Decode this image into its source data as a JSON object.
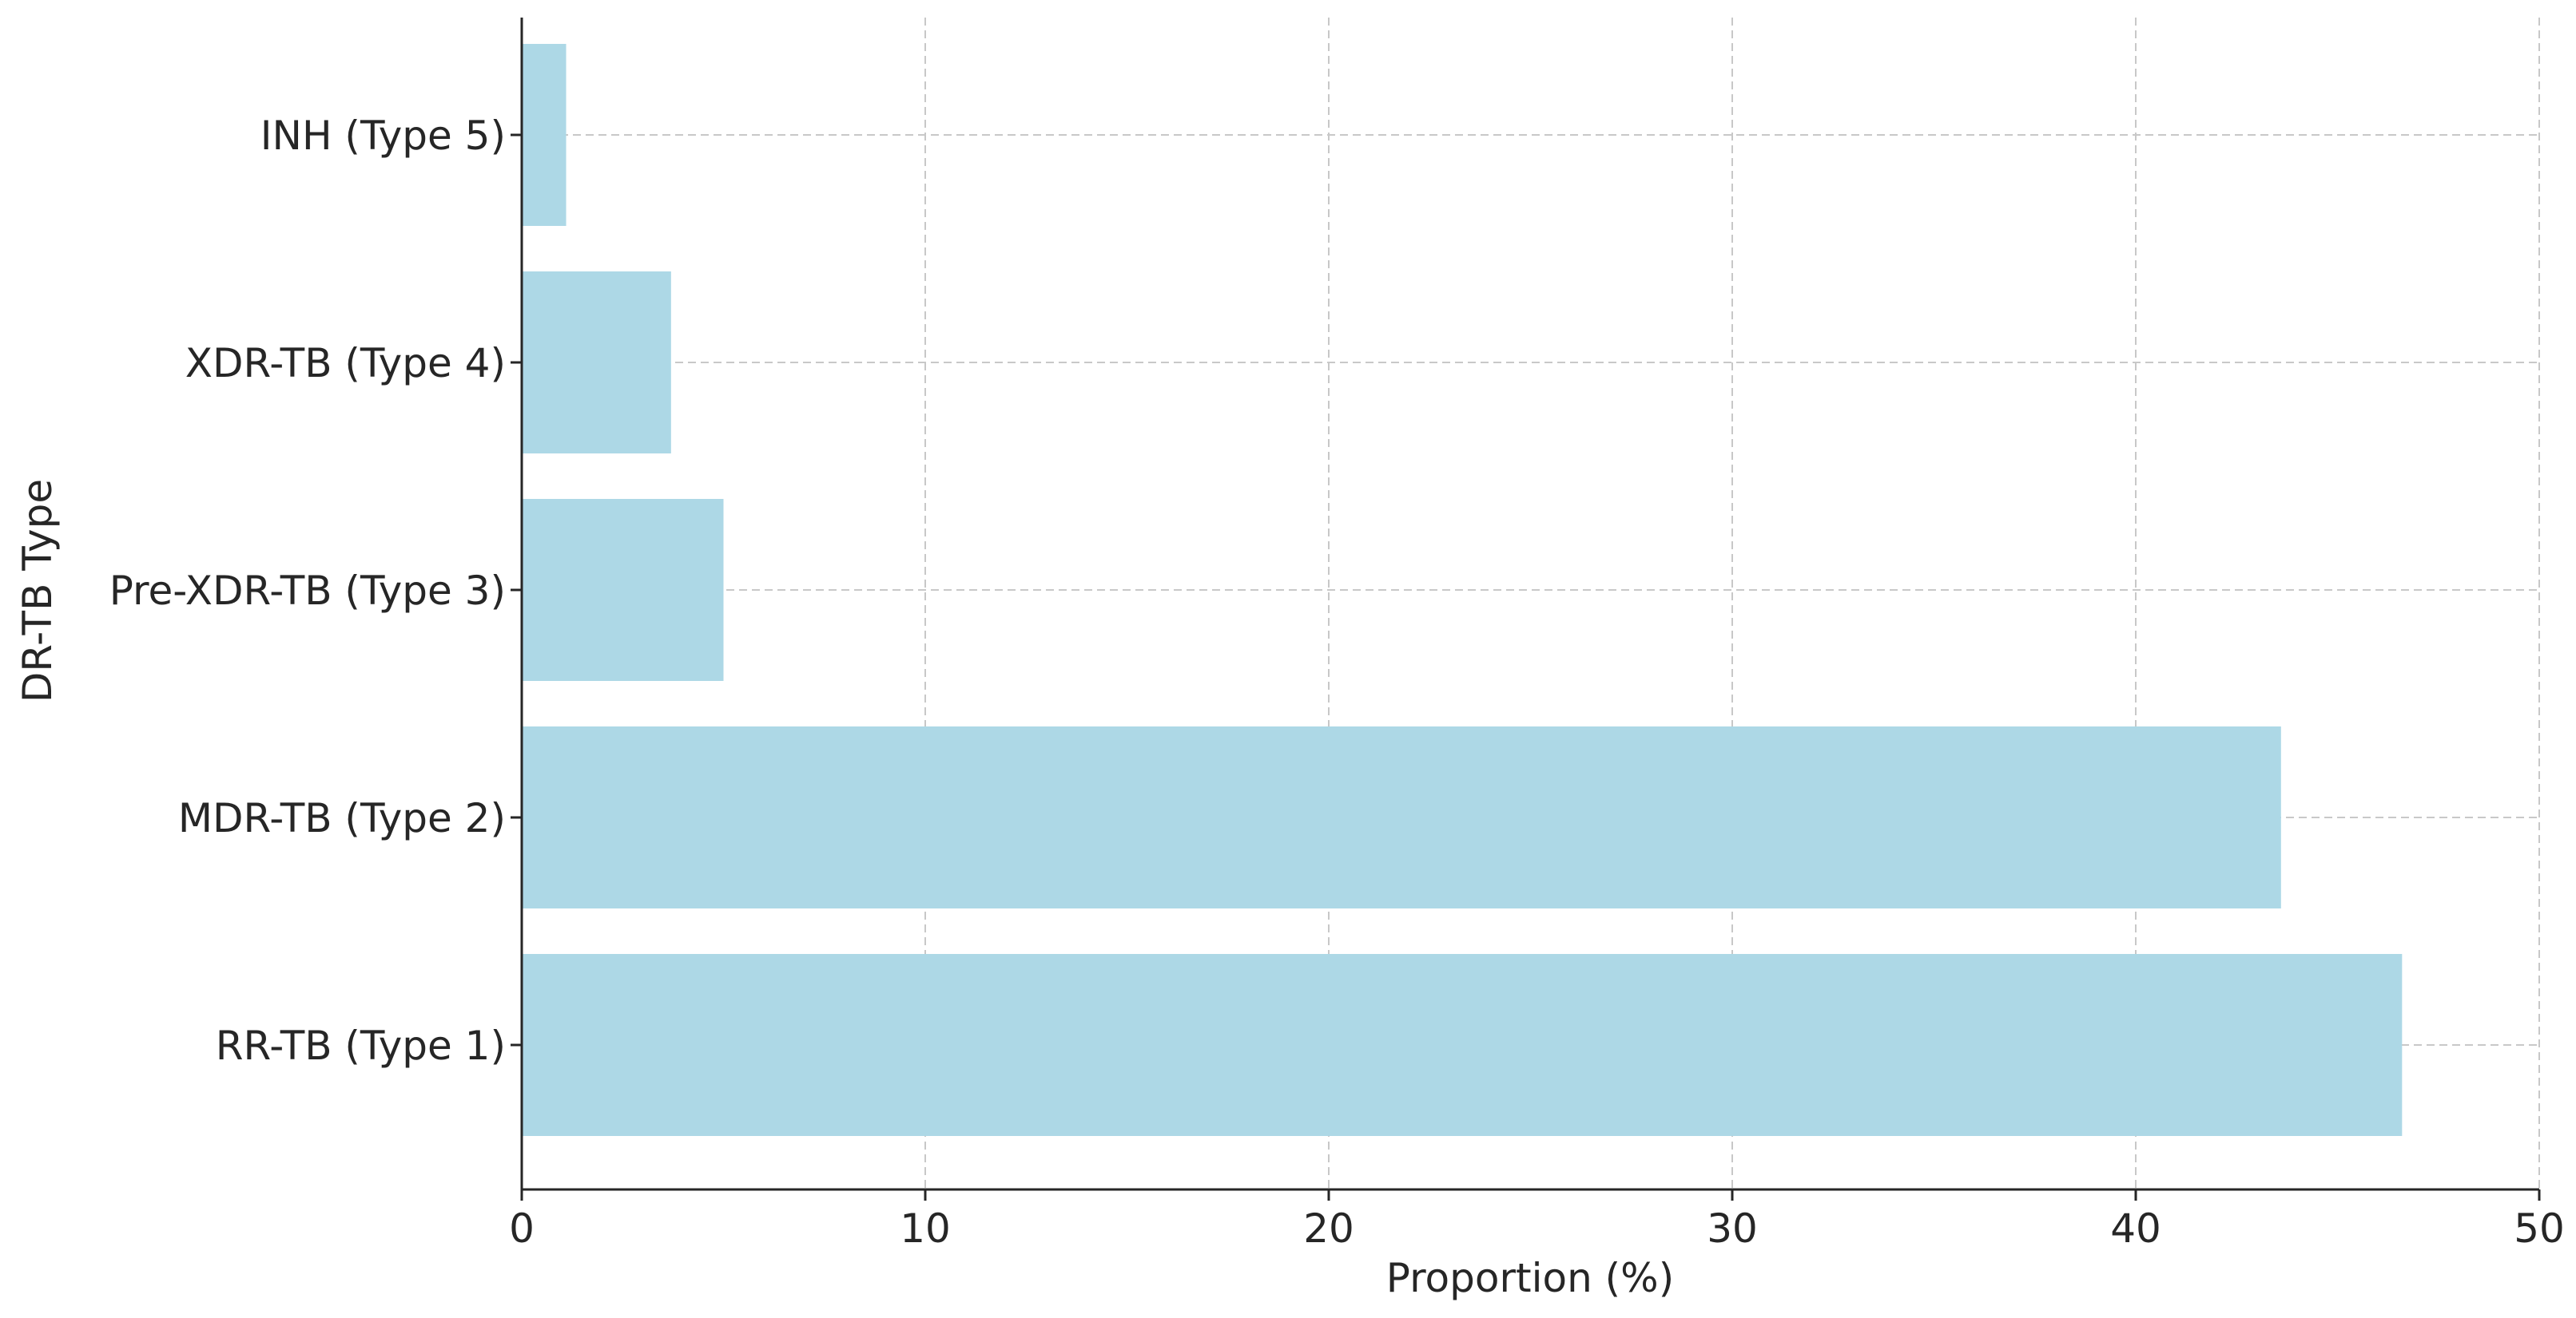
{
  "chart_data": {
    "type": "bar",
    "orientation": "horizontal",
    "categories": [
      "RR-TB (Type 1)",
      "MDR-TB (Type 2)",
      "Pre-XDR-TB (Type 3)",
      "XDR-TB (Type 4)",
      "INH (Type 5)"
    ],
    "values": [
      46.6,
      43.6,
      5.0,
      3.7,
      1.1
    ],
    "xlabel": "Proportion (%)",
    "ylabel": "DR-TB Type",
    "xlim": [
      0,
      50
    ],
    "xticks": [
      "0",
      "10",
      "20",
      "30",
      "40",
      "50"
    ],
    "grid": true,
    "bar_color": "#add8e6"
  }
}
